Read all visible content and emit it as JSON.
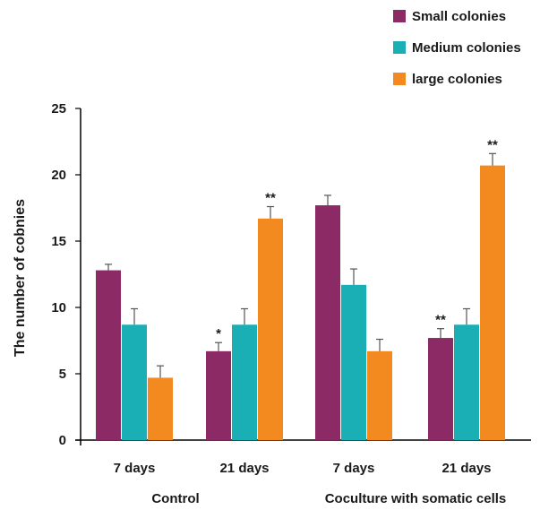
{
  "chart_data": {
    "type": "bar",
    "ylabel": "The number of cobnies",
    "ylim": [
      0,
      25
    ],
    "yticks": [
      0,
      5,
      10,
      15,
      20,
      25
    ],
    "grid": false,
    "legend_position": "top-right",
    "groups": [
      {
        "name": "Control",
        "categories": [
          "7 days",
          "21 days"
        ]
      },
      {
        "name": "Coculture with somatic cells",
        "categories": [
          "7 days",
          "21 days"
        ]
      }
    ],
    "categories": [
      "7 days",
      "21 days",
      "7 days",
      "21 days"
    ],
    "series": [
      {
        "name": "Small colonies",
        "color": "#8c2a66",
        "values": [
          12.8,
          6.7,
          17.7,
          7.7
        ],
        "errors": [
          0.45,
          0.65,
          0.75,
          0.7
        ],
        "annotations": [
          "",
          "*",
          "",
          "**"
        ]
      },
      {
        "name": "Medium colonies",
        "color": "#1aafb4",
        "values": [
          8.7,
          8.7,
          11.7,
          8.7
        ],
        "errors": [
          1.2,
          1.2,
          1.2,
          1.2
        ],
        "annotations": [
          "",
          "",
          "",
          ""
        ]
      },
      {
        "name": "large colonies",
        "color": "#f28a1f",
        "values": [
          4.7,
          16.7,
          6.7,
          20.7
        ],
        "errors": [
          0.9,
          0.9,
          0.9,
          0.9
        ],
        "annotations": [
          "",
          "**",
          "",
          "**"
        ]
      }
    ]
  }
}
